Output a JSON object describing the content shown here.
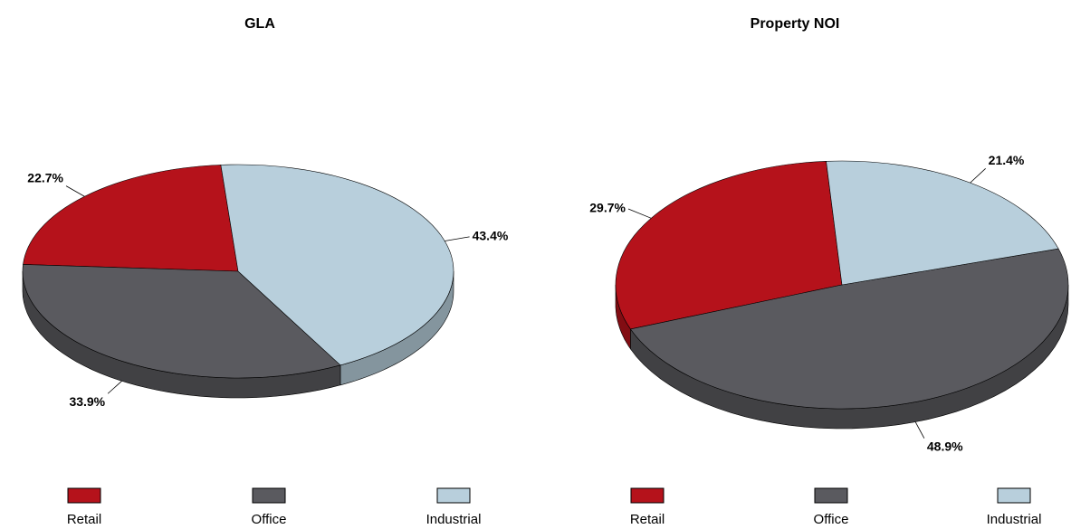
{
  "chart_data": [
    {
      "type": "pie",
      "title": "GLA",
      "categories": [
        "Retail",
        "Office",
        "Industrial"
      ],
      "values": [
        22.7,
        33.9,
        43.4
      ],
      "value_labels": [
        "22.7%",
        "33.9%",
        "43.4%"
      ],
      "colors": [
        "#b5121b",
        "#5a5a5f",
        "#b8cfdc"
      ]
    },
    {
      "type": "pie",
      "title": "Property NOI",
      "categories": [
        "Retail",
        "Office",
        "Industrial"
      ],
      "values": [
        29.7,
        48.9,
        21.4
      ],
      "value_labels": [
        "29.7%",
        "48.9%",
        "21.4%"
      ],
      "colors": [
        "#b5121b",
        "#5a5a5f",
        "#b8cfdc"
      ]
    }
  ]
}
